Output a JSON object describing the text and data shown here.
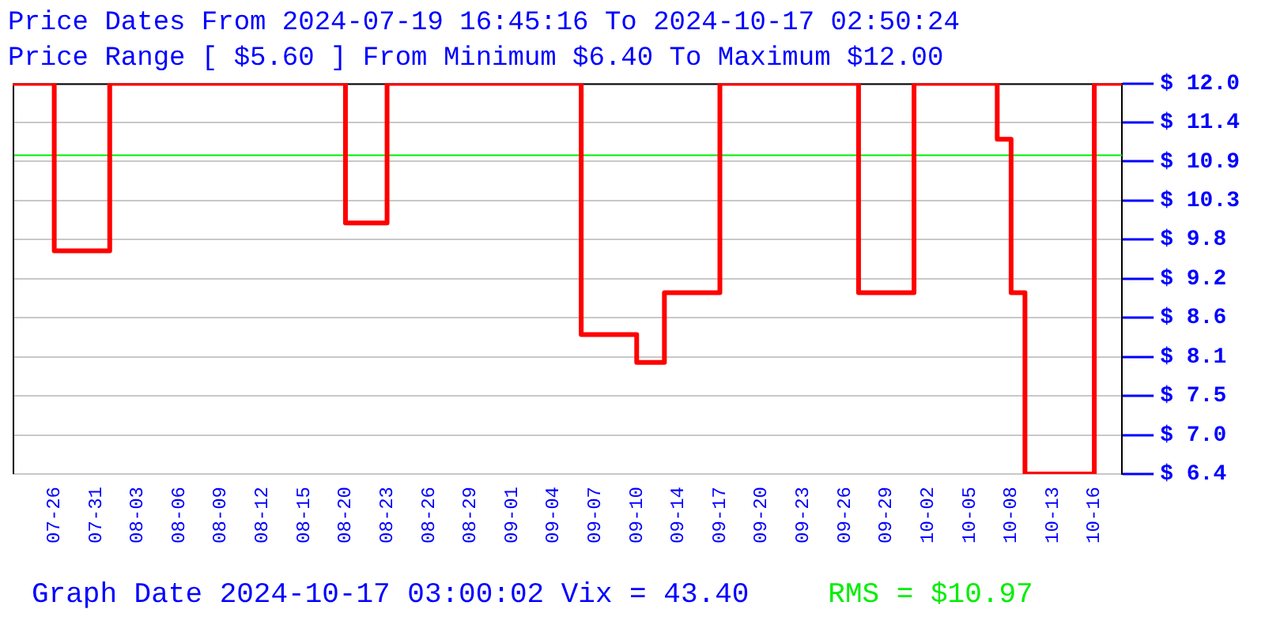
{
  "chart_data": {
    "type": "step",
    "title": "Price Dates From 2024-07-19 16:45:16 To 2024-10-17 02:50:24",
    "subtitle": "Price Range [ $5.60 ] From Minimum $6.40 To Maximum $12.00",
    "annotations": [
      "Graph Date 2024-10-17 03:00:02 Vix = 43.40"
    ],
    "categories": [
      null,
      null,
      null,
      null,
      null,
      null,
      "07-26",
      null,
      null,
      null,
      null,
      null,
      "07-31",
      null,
      null,
      null,
      null,
      null,
      "08-03",
      null,
      null,
      null,
      null,
      null,
      "08-06",
      null,
      null,
      null,
      null,
      null,
      "08-09",
      null,
      null,
      null,
      null,
      null,
      "08-12",
      null,
      null,
      null,
      null,
      null,
      "08-15",
      null,
      null,
      null,
      null,
      null,
      "08-20",
      null,
      null,
      null,
      null,
      null,
      "08-23",
      null,
      null,
      null,
      null,
      null,
      "08-26",
      null,
      null,
      null,
      null,
      null,
      "08-29",
      null,
      null,
      null,
      null,
      null,
      "09-01",
      null,
      null,
      null,
      null,
      null,
      "09-04",
      null,
      null,
      null,
      null,
      null,
      "09-07",
      null,
      null,
      null,
      null,
      null,
      "09-10",
      null,
      null,
      null,
      null,
      null,
      "09-14",
      null,
      null,
      null,
      null,
      null,
      "09-17",
      null,
      null,
      null,
      null,
      null,
      "09-20",
      null,
      null,
      null,
      null,
      null,
      "09-23",
      null,
      null,
      null,
      null,
      null,
      "09-26",
      null,
      null,
      null,
      null,
      null,
      "09-29",
      null,
      null,
      null,
      null,
      null,
      "10-02",
      null,
      null,
      null,
      null,
      null,
      "10-05",
      null,
      null,
      null,
      null,
      null,
      "10-08",
      null,
      null,
      null,
      null,
      null,
      "10-13",
      null,
      null,
      null,
      null,
      null,
      "10-16",
      null,
      null,
      null,
      null
    ],
    "series": [
      {
        "color": "#ff0000",
        "values": [
          12,
          12,
          12,
          12,
          12,
          12,
          9.6,
          9.6,
          9.6,
          9.6,
          9.6,
          9.6,
          9.6,
          9.6,
          12,
          12,
          12,
          12,
          12,
          12,
          12,
          12,
          12,
          12,
          12,
          12,
          12,
          12,
          12,
          12,
          12,
          12,
          12,
          12,
          12,
          12,
          12,
          12,
          12,
          12,
          12,
          12,
          12,
          12,
          12,
          12,
          12,
          12,
          10,
          10,
          10,
          10,
          10,
          10,
          12,
          12,
          12,
          12,
          12,
          12,
          12,
          12,
          12,
          12,
          12,
          12,
          12,
          12,
          12,
          12,
          12,
          12,
          12,
          12,
          12,
          12,
          12,
          12,
          12,
          12,
          12,
          12,
          8.4,
          8.4,
          8.4,
          8.4,
          8.4,
          8.4,
          8.4,
          8.4,
          8,
          8,
          8,
          8,
          9,
          9,
          9,
          9,
          9,
          9,
          9,
          9,
          12,
          12,
          12,
          12,
          12,
          12,
          12,
          12,
          12,
          12,
          12,
          12,
          12,
          12,
          12,
          12,
          12,
          12,
          12,
          12,
          9,
          9,
          9,
          9,
          9,
          9,
          9,
          9,
          12,
          12,
          12,
          12,
          12,
          12,
          12,
          12,
          12,
          12,
          12,
          12,
          11.2,
          11.2,
          9,
          9,
          6.4,
          6.4,
          6.4,
          6.4,
          6.4,
          6.4,
          6.4,
          6.4,
          6.4,
          6.4,
          12,
          12,
          12,
          12,
          12
        ]
      }
    ],
    "ylim": [
      6.4,
      12.0
    ],
    "yticks": [
      {
        "value": 6.4,
        "label": "$ 6.4"
      },
      {
        "value": 6.96,
        "label": "$ 7.0"
      },
      {
        "value": 7.52,
        "label": "$ 7.5"
      },
      {
        "value": 8.08,
        "label": "$ 8.1"
      },
      {
        "value": 8.64,
        "label": "$ 8.6"
      },
      {
        "value": 9.2,
        "label": "$ 9.2"
      },
      {
        "value": 9.76,
        "label": "$ 9.8"
      },
      {
        "value": 10.32,
        "label": "$ 10.3"
      },
      {
        "value": 10.88,
        "label": "$ 10.9"
      },
      {
        "value": 11.44,
        "label": "$ 11.4"
      },
      {
        "value": 12.0,
        "label": "$ 12.0"
      }
    ],
    "ref_lines": [
      {
        "axis": "y",
        "value": 10.97,
        "label": "RMS = $10.97",
        "color": "#00ee00"
      }
    ],
    "grid": "y",
    "marker": "none",
    "line_style": "solid"
  }
}
